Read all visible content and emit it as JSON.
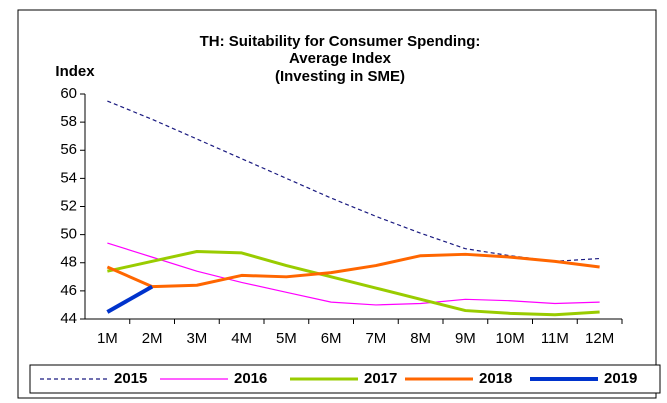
{
  "chart_data": {
    "type": "line",
    "title": [
      "TH: Suitability for Consumer Spending:",
      "Average Index"
    ],
    "subtitle": "(Investing in SME)",
    "y_label": "Index",
    "categories": [
      "1M",
      "2M",
      "3M",
      "4M",
      "5M",
      "6M",
      "7M",
      "8M",
      "9M",
      "10M",
      "11M",
      "12M"
    ],
    "series": [
      {
        "name": "2015",
        "color": "#1a1a80",
        "dashed": true,
        "line_width": 1.2,
        "values": [
          59.5,
          58.2,
          56.8,
          55.4,
          54.0,
          52.6,
          51.3,
          50.1,
          49.0,
          48.5,
          48.1,
          48.3
        ]
      },
      {
        "name": "2016",
        "color": "#ff00ff",
        "dashed": false,
        "line_width": 1.2,
        "values": [
          49.4,
          48.4,
          47.4,
          46.6,
          45.9,
          45.2,
          45.0,
          45.1,
          45.4,
          45.3,
          45.1,
          45.2
        ]
      },
      {
        "name": "2017",
        "color": "#99cc00",
        "dashed": false,
        "line_width": 3,
        "values": [
          47.4,
          48.1,
          48.8,
          48.7,
          47.8,
          47.0,
          46.2,
          45.4,
          44.6,
          44.4,
          44.3,
          44.5
        ]
      },
      {
        "name": "2018",
        "color": "#ff6600",
        "dashed": false,
        "line_width": 3,
        "values": [
          47.7,
          46.3,
          46.4,
          47.1,
          47.0,
          47.3,
          47.8,
          48.5,
          48.6,
          48.4,
          48.1,
          47.7
        ]
      },
      {
        "name": "2019",
        "color": "#0033cc",
        "dashed": false,
        "line_width": 4,
        "values": [
          44.5,
          46.3,
          null,
          null,
          null,
          null,
          null,
          null,
          null,
          null,
          null,
          null
        ]
      }
    ],
    "ylim": [
      44,
      60
    ],
    "yticks": [
      44,
      46,
      48,
      50,
      52,
      54,
      56,
      58,
      60
    ],
    "grid": false,
    "legend": "bottom"
  }
}
